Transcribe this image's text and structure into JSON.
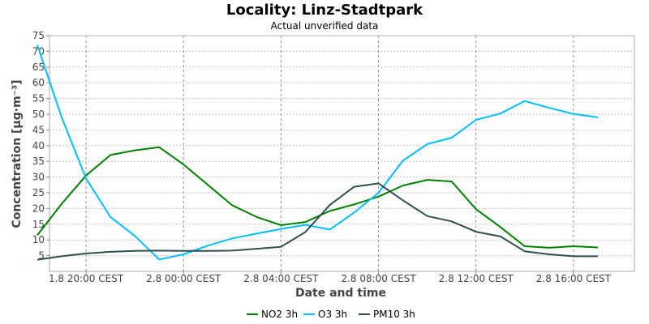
{
  "chart_data": {
    "type": "line",
    "title": "Locality: Linz-Stadtpark",
    "subtitle": "Actual unverified data",
    "xlabel": "Date and time",
    "ylabel": "Concentration [µg·m⁻³]",
    "ylim": [
      0,
      75
    ],
    "y_ticks": [
      5,
      10,
      15,
      20,
      25,
      30,
      35,
      40,
      45,
      50,
      55,
      60,
      65,
      70,
      75
    ],
    "xlim": [
      -1.5,
      22.5
    ],
    "x_ticks": [
      {
        "x": 0,
        "label": "1.8 20:00 CEST"
      },
      {
        "x": 4,
        "label": "2.8 00:00 CEST"
      },
      {
        "x": 8,
        "label": "2.8 04:00 CEST"
      },
      {
        "x": 12,
        "label": "2.8 08:00 CEST"
      },
      {
        "x": 16,
        "label": "2.8 12:00 CEST"
      },
      {
        "x": 20,
        "label": "2.8 16:00 CEST"
      }
    ],
    "x": [
      -2,
      -1,
      0,
      1,
      2,
      3,
      4,
      5,
      6,
      7,
      8,
      9,
      10,
      11,
      12,
      13,
      14,
      15,
      16,
      17,
      18,
      19,
      20,
      21
    ],
    "grid": true,
    "legend_position": "bottom",
    "series": [
      {
        "name": "NO2 3h",
        "color": "#008000",
        "values": [
          11.5,
          21.5,
          30.5,
          37,
          38.5,
          39.5,
          34,
          27.5,
          21,
          17.3,
          14.7,
          15.7,
          19.2,
          21.3,
          23.8,
          27.3,
          29.1,
          28.6,
          19.8,
          14.1,
          8,
          7.5,
          8,
          7.6
        ]
      },
      {
        "name": "O3 3h",
        "color": "#00BFFF",
        "values": [
          72,
          49,
          29.5,
          17.3,
          11.3,
          3.8,
          5.4,
          8.2,
          10.5,
          12,
          13.5,
          14.8,
          13.3,
          18.7,
          25,
          35.2,
          40.5,
          42.5,
          48.2,
          50.2,
          54.2,
          52,
          50.1,
          49
        ]
      },
      {
        "name": "PM10 3h",
        "color": "#2F4F4F",
        "values": [
          3.7,
          4.8,
          5.7,
          6.2,
          6.5,
          6.6,
          6.5,
          6.5,
          6.6,
          7.2,
          7.8,
          12.5,
          21.1,
          26.9,
          28,
          22.6,
          17.6,
          15.9,
          12.6,
          11.1,
          6.4,
          5.4,
          4.8,
          4.8
        ]
      }
    ]
  }
}
